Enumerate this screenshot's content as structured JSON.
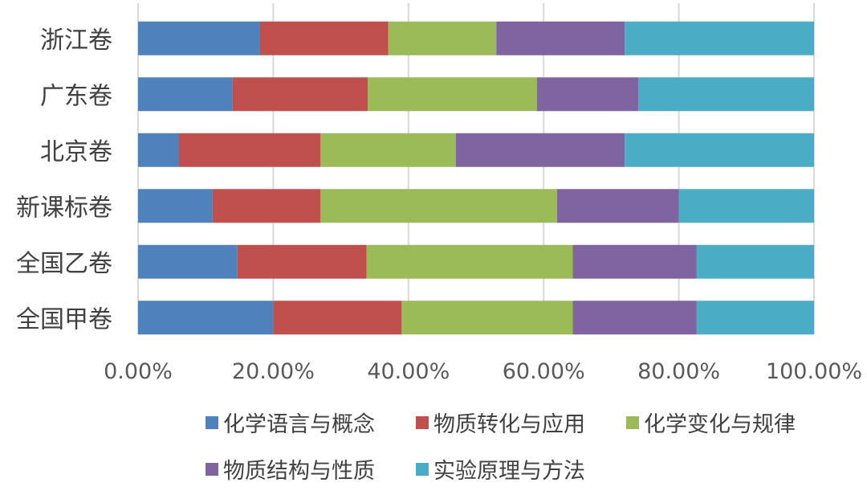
{
  "chart_data": {
    "type": "bar",
    "orientation": "horizontal",
    "stacked": "percent",
    "categories": [
      "浙江卷",
      "广东卷",
      "北京卷",
      "新课标卷",
      "全国乙卷",
      "全国甲卷"
    ],
    "series": [
      {
        "name": "化学语言与概念",
        "color": "#4f81bd",
        "values": [
          18,
          14,
          6,
          11,
          14.7,
          20
        ]
      },
      {
        "name": "物质转化与应用",
        "color": "#c0504d",
        "values": [
          19,
          20,
          21,
          16,
          19.1,
          19
        ]
      },
      {
        "name": "化学变化与规律",
        "color": "#9bbb59",
        "values": [
          16,
          25,
          20,
          35,
          30.5,
          25.3
        ]
      },
      {
        "name": "物质结构与性质",
        "color": "#8064a2",
        "values": [
          19,
          15,
          25,
          18,
          18.3,
          18.3
        ]
      },
      {
        "name": "实验原理与方法",
        "color": "#4bacc6",
        "values": [
          28,
          26,
          28,
          20,
          17.4,
          17.4
        ]
      }
    ],
    "xlim": [
      0,
      100
    ],
    "x_ticks": [
      "0.00%",
      "20.00%",
      "40.00%",
      "60.00%",
      "80.00%",
      "100.00%"
    ],
    "grid": true,
    "legend_position": "bottom"
  }
}
